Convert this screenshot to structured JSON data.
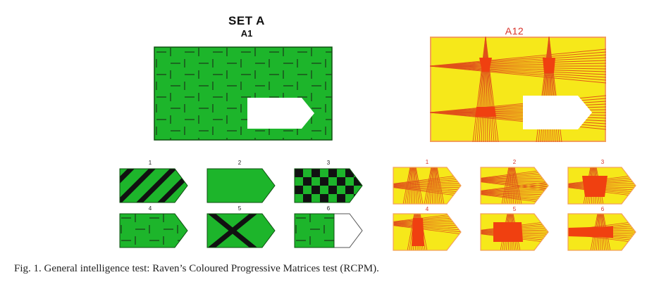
{
  "set_a": {
    "title": "SET A",
    "subtitle": "A1",
    "options": [
      {
        "number": "1",
        "pattern": "black diagonal stripes on green"
      },
      {
        "number": "2",
        "pattern": "plain green"
      },
      {
        "number": "3",
        "pattern": "black and green checkerboard"
      },
      {
        "number": "4",
        "pattern": "green dash brick pattern"
      },
      {
        "number": "5",
        "pattern": "black X on green"
      },
      {
        "number": "6",
        "pattern": "green dash pattern, partly blank"
      }
    ],
    "colors": {
      "green": "#1db52b",
      "black": "#111111",
      "dash": "#1a5a1a"
    }
  },
  "a12": {
    "title": "A12",
    "options": [
      {
        "number": "1"
      },
      {
        "number": "2"
      },
      {
        "number": "3"
      },
      {
        "number": "4"
      },
      {
        "number": "5"
      },
      {
        "number": "6"
      }
    ],
    "colors": {
      "yellow": "#f6e81a",
      "red": "#f04010",
      "line": "#e0501a",
      "border": "#f3a05a"
    }
  },
  "caption": "Fig. 1.  General intelligence test: Raven’s Coloured Progressive Matrices test (RCPM)."
}
